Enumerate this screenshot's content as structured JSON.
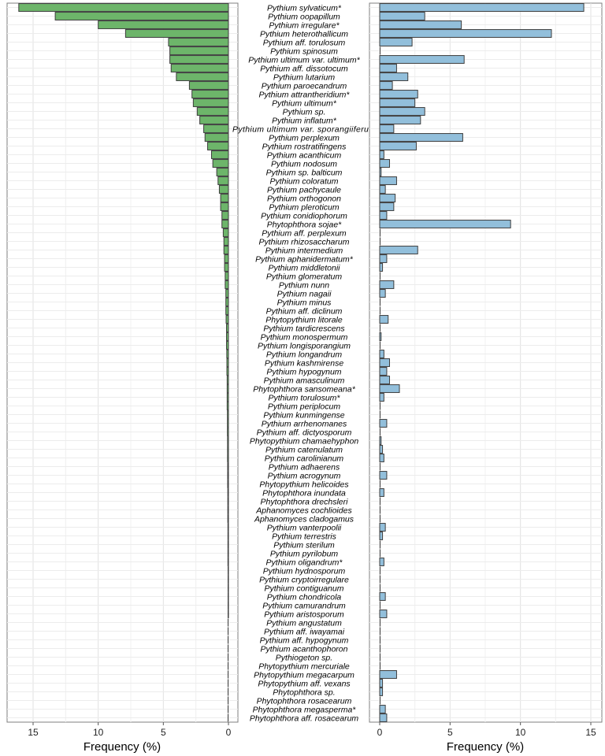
{
  "chart_data": [
    {
      "type": "bar",
      "orientation": "horizontal",
      "mirrored": true,
      "xlabel": "Frequency (%)",
      "xlim": [
        0,
        16.5
      ],
      "xticks": [
        "15",
        "10",
        "5",
        "0"
      ],
      "color": "#6db56a",
      "categories": [
        "Pythium sylvaticum*",
        "Pythium oopapillum",
        "Pythium irregulare*",
        "Pythium heterothallicum",
        "Pythium aff. torulosum",
        "Pythium spinosum",
        "Pythium ultimum var. ultimum*",
        "Pythium aff. dissotocum",
        "Pythium lutarium",
        "Pythium paroecandrum",
        "Pythium attrantheridium*",
        "Pythium ultimum*",
        "Pythium sp.",
        "Pythium inflatum*",
        "Pythium ultimum var. sporangiiferum",
        "Pythium perplexum",
        "Pythium rostratifingens",
        "Pythium acanthicum",
        "Pythium nodosum",
        "Pythium sp. balticum",
        "Pythium coloratum",
        "Pythium pachycaule",
        "Pythium orthogonon",
        "Pythium pleroticum",
        "Pythium conidiophorum",
        "Phytophthora sojae*",
        "Pythium aff. perplexum",
        "Pythium rhizosaccharum",
        "Pythium intermedium",
        "Pythium aphanidermatum*",
        "Pythium middletonii",
        "Pythium glomeratum",
        "Pythium nunn",
        "Pythium nagaii",
        "Pythium minus",
        "Pythium aff. diclinum",
        "Phytopythium litorale",
        "Pythium tardicrescens",
        "Pythium monospermum",
        "Pythium longisporangium",
        "Pythium longandrum",
        "Pythium kashmirense",
        "Pythium hypogynum",
        "Pythium amasculinum",
        "Phytophthora sansomeana*",
        "Pythium torulosum*",
        "Pythium periplocum",
        "Pythium kunmingense",
        "Pythium arrhenomanes",
        "Pythium aff. dictyosporum",
        "Phytopythium chamaehyphon",
        "Pythium catenulatum",
        "Pythium carolinianum",
        "Pythium adhaerens",
        "Pythium acrogynum",
        "Phytopythium helicoides",
        "Phytophthora inundata",
        "Phytophthora drechsleri",
        "Aphanomyces cochlioides",
        "Aphanomyces cladogamus",
        "Pythium vanterpoolii",
        "Pythium terrestris",
        "Pythium sterilum",
        "Pythium pyrilobum",
        "Pythium oligandrum*",
        "Pythium hydnosporum",
        "Pythium cryptoirregulare",
        "Pythium contiguanum",
        "Pythium chondricola",
        "Pythium camurandrum",
        "Pythium aristosporum",
        "Pythium angustatum",
        "Pythium aff. iwayamai",
        "Pythium aff. hypogynum",
        "Pythium acanthophoron",
        "Pythiogeton sp.",
        "Phytopythium mercuriale",
        "Phytopythium megacarpum",
        "Phytopythium aff. vexans",
        "Phytophthora sp.",
        "Phytophthora rosacearum",
        "Phytophthora megasperma*",
        "Phytophthora aff. rosacearum"
      ],
      "values": [
        16.1,
        13.3,
        10.0,
        7.9,
        4.6,
        4.5,
        4.5,
        4.4,
        4.0,
        3.0,
        2.8,
        2.7,
        2.4,
        2.2,
        1.9,
        1.8,
        1.6,
        1.3,
        1.2,
        0.9,
        0.8,
        0.7,
        0.6,
        0.6,
        0.5,
        0.5,
        0.4,
        0.35,
        0.35,
        0.3,
        0.3,
        0.25,
        0.25,
        0.2,
        0.2,
        0.2,
        0.18,
        0.15,
        0.15,
        0.15,
        0.13,
        0.12,
        0.12,
        0.1,
        0.1,
        0.1,
        0.1,
        0.08,
        0.08,
        0.08,
        0.07,
        0.07,
        0.07,
        0.06,
        0.06,
        0.06,
        0.05,
        0.05,
        0.05,
        0.05,
        0.04,
        0.04,
        0.04,
        0.04,
        0.04,
        0.03,
        0.03,
        0.03,
        0.03,
        0.03,
        0.03,
        0.02,
        0.02,
        0.02,
        0.02,
        0.02,
        0.02,
        0.02,
        0.02,
        0.01,
        0.01,
        0.01,
        0.01
      ]
    },
    {
      "type": "bar",
      "orientation": "horizontal",
      "xlabel": "Frequency (%)",
      "xlim": [
        0,
        15.3
      ],
      "xticks": [
        "0",
        "5",
        "10",
        "15"
      ],
      "color": "#92bfdb",
      "values": [
        14.5,
        3.2,
        5.8,
        12.2,
        2.3,
        0,
        6.0,
        1.2,
        2.0,
        0.9,
        2.7,
        2.5,
        3.2,
        2.9,
        1.0,
        5.9,
        2.6,
        0.3,
        0.7,
        0.1,
        1.2,
        0.4,
        1.1,
        1.0,
        0.5,
        9.3,
        0,
        0,
        2.7,
        0.5,
        0.2,
        0,
        1.0,
        0.4,
        0,
        0,
        0.6,
        0,
        0.1,
        0,
        0.3,
        0.7,
        0.5,
        0.7,
        1.4,
        0.3,
        0,
        0,
        0.5,
        0,
        0.1,
        0.2,
        0.3,
        0,
        0.5,
        0,
        0.3,
        0,
        0,
        0,
        0.4,
        0.2,
        0,
        0,
        0.3,
        0,
        0,
        0,
        0.4,
        0,
        0.5,
        0,
        0,
        0,
        0,
        0,
        0,
        1.2,
        0.2,
        0.2,
        0,
        0.4,
        0.5
      ]
    }
  ]
}
